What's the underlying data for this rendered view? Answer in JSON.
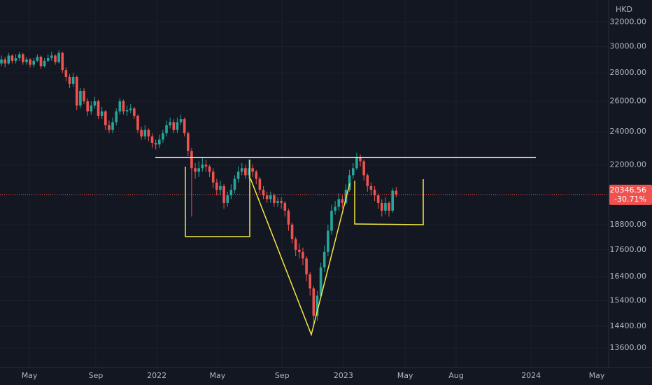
{
  "chart_data": {
    "type": "candlestick",
    "currency": "HKD",
    "price_label": "20346.56",
    "change_label": "-30.71%",
    "log_scale": true,
    "grid": true,
    "up_color": "#26a69a",
    "down_color": "#ef5350",
    "ylim": [
      12920,
      33900
    ],
    "yticks": [
      {
        "value": 32000,
        "label": "32000.00"
      },
      {
        "value": 30000,
        "label": "30000.00"
      },
      {
        "value": 28000,
        "label": "28000.00"
      },
      {
        "value": 26000,
        "label": "26000.00"
      },
      {
        "value": 24000,
        "label": "24000.00"
      },
      {
        "value": 22000,
        "label": "22000.00"
      },
      {
        "value": 18800,
        "label": "18800.00"
      },
      {
        "value": 17600,
        "label": "17600.00"
      },
      {
        "value": 16400,
        "label": "16400.00"
      },
      {
        "value": 15400,
        "label": "15400.00"
      },
      {
        "value": 14400,
        "label": "14400.00"
      },
      {
        "value": 13600,
        "label": "13600.00"
      }
    ],
    "xlim": [
      -0.4,
      169.2
    ],
    "xticks": [
      {
        "value": 7.8,
        "label": "May"
      },
      {
        "value": 26.3,
        "label": "Sep"
      },
      {
        "value": 43.3,
        "label": "2022"
      },
      {
        "value": 60.2,
        "label": "May"
      },
      {
        "value": 78.2,
        "label": "Sep"
      },
      {
        "value": 95.3,
        "label": "2023"
      },
      {
        "value": 112.5,
        "label": "May"
      },
      {
        "value": 126.7,
        "label": "Aug"
      },
      {
        "value": 147.6,
        "label": "2024"
      },
      {
        "value": 165.9,
        "label": "May"
      }
    ],
    "ohlc": [
      [
        28700,
        29300,
        28500,
        29000
      ],
      [
        29000,
        29200,
        28400,
        28700
      ],
      [
        28700,
        29500,
        28600,
        29300
      ],
      [
        29300,
        29400,
        28700,
        28900
      ],
      [
        28900,
        29400,
        28700,
        29100
      ],
      [
        29100,
        29600,
        28900,
        29400
      ],
      [
        29400,
        29500,
        28600,
        28800
      ],
      [
        28800,
        29200,
        28600,
        29000
      ],
      [
        29000,
        29100,
        28400,
        28600
      ],
      [
        28600,
        29100,
        28400,
        28900
      ],
      [
        28900,
        29400,
        28800,
        29200
      ],
      [
        29200,
        29300,
        28300,
        28500
      ],
      [
        28500,
        29100,
        28400,
        28900
      ],
      [
        28900,
        29400,
        28800,
        29100
      ],
      [
        29100,
        29600,
        28900,
        29300
      ],
      [
        29300,
        29400,
        28600,
        28800
      ],
      [
        28800,
        29700,
        28700,
        29500
      ],
      [
        29500,
        29600,
        28000,
        28200
      ],
      [
        28200,
        28400,
        27400,
        27700
      ],
      [
        27700,
        27900,
        26900,
        27200
      ],
      [
        27200,
        28000,
        27000,
        27700
      ],
      [
        27700,
        27800,
        25400,
        25700
      ],
      [
        25700,
        26900,
        25500,
        26700
      ],
      [
        26700,
        26900,
        25800,
        26000
      ],
      [
        26000,
        26200,
        25000,
        25300
      ],
      [
        25300,
        26000,
        25100,
        25700
      ],
      [
        25700,
        26300,
        25500,
        26000
      ],
      [
        26000,
        26100,
        24800,
        25000
      ],
      [
        25000,
        25600,
        24800,
        25300
      ],
      [
        25300,
        25400,
        24100,
        24400
      ],
      [
        24400,
        24700,
        23900,
        24100
      ],
      [
        24100,
        24900,
        23900,
        24600
      ],
      [
        24600,
        25500,
        24400,
        25300
      ],
      [
        25300,
        26200,
        25100,
        26000
      ],
      [
        26000,
        26100,
        25100,
        25300
      ],
      [
        25300,
        25700,
        25000,
        25400
      ],
      [
        25400,
        25800,
        25200,
        25500
      ],
      [
        25500,
        25600,
        24800,
        25000
      ],
      [
        25000,
        25100,
        23900,
        24100
      ],
      [
        24100,
        24300,
        23500,
        23700
      ],
      [
        23700,
        24400,
        23500,
        24100
      ],
      [
        24100,
        24200,
        23400,
        23700
      ],
      [
        23700,
        23900,
        23000,
        23300
      ],
      [
        23300,
        23500,
        22900,
        23200
      ],
      [
        23200,
        23800,
        23000,
        23500
      ],
      [
        23500,
        24100,
        23300,
        23900
      ],
      [
        23900,
        24700,
        23700,
        24400
      ],
      [
        24400,
        24900,
        24200,
        24600
      ],
      [
        24600,
        24800,
        23900,
        24100
      ],
      [
        24100,
        24900,
        23900,
        24600
      ],
      [
        24600,
        25100,
        24400,
        24800
      ],
      [
        24800,
        24900,
        23700,
        23900
      ],
      [
        23900,
        24000,
        22500,
        22800
      ],
      [
        22800,
        23000,
        19200,
        21800
      ],
      [
        21800,
        22100,
        21200,
        21600
      ],
      [
        21600,
        22200,
        21300,
        21800
      ],
      [
        21800,
        22400,
        21600,
        22000
      ],
      [
        22000,
        22300,
        21600,
        21900
      ],
      [
        21900,
        22000,
        21300,
        21600
      ],
      [
        21600,
        21800,
        20700,
        21000
      ],
      [
        21000,
        21200,
        20300,
        20600
      ],
      [
        20600,
        21100,
        20300,
        20800
      ],
      [
        20800,
        20900,
        19600,
        19900
      ],
      [
        19900,
        20500,
        19700,
        20300
      ],
      [
        20300,
        20900,
        20100,
        20600
      ],
      [
        20600,
        21400,
        20400,
        21200
      ],
      [
        21200,
        21900,
        21000,
        21600
      ],
      [
        21600,
        22100,
        21400,
        21800
      ],
      [
        21800,
        22000,
        21200,
        21400
      ],
      [
        21400,
        22300,
        21200,
        21800
      ],
      [
        21800,
        22000,
        21300,
        21600
      ],
      [
        21600,
        21700,
        20900,
        21200
      ],
      [
        21200,
        21300,
        20400,
        20600
      ],
      [
        20600,
        20800,
        20100,
        20300
      ],
      [
        20300,
        20500,
        19900,
        20100
      ],
      [
        20100,
        20500,
        19900,
        20300
      ],
      [
        20300,
        20400,
        19700,
        19900
      ],
      [
        19900,
        20200,
        19700,
        20000
      ],
      [
        20000,
        20200,
        19600,
        19900
      ],
      [
        19900,
        20000,
        19200,
        19500
      ],
      [
        19500,
        19600,
        18500,
        18800
      ],
      [
        18800,
        18900,
        17900,
        18100
      ],
      [
        18100,
        18200,
        17300,
        17600
      ],
      [
        17600,
        17900,
        17200,
        17500
      ],
      [
        17500,
        17700,
        16900,
        17200
      ],
      [
        17200,
        17300,
        16200,
        16500
      ],
      [
        16500,
        16600,
        15600,
        15900
      ],
      [
        15900,
        16000,
        14500,
        14800
      ],
      [
        14800,
        15800,
        14600,
        15600
      ],
      [
        15600,
        17000,
        15500,
        16800
      ],
      [
        16800,
        17800,
        16600,
        17500
      ],
      [
        17500,
        18800,
        17300,
        18500
      ],
      [
        18500,
        19800,
        18300,
        19500
      ],
      [
        19500,
        20000,
        19300,
        19700
      ],
      [
        19700,
        20400,
        19500,
        20100
      ],
      [
        20100,
        20300,
        19600,
        19900
      ],
      [
        19900,
        20900,
        19800,
        20600
      ],
      [
        20600,
        21700,
        20500,
        21400
      ],
      [
        21400,
        22100,
        21200,
        21800
      ],
      [
        21800,
        22700,
        21700,
        22400
      ],
      [
        22400,
        22600,
        21900,
        22200
      ],
      [
        22200,
        22300,
        21100,
        21400
      ],
      [
        21400,
        21500,
        20500,
        20800
      ],
      [
        20800,
        21000,
        20300,
        20600
      ],
      [
        20600,
        20800,
        20000,
        20300
      ],
      [
        20300,
        20400,
        19600,
        19900
      ],
      [
        19900,
        20100,
        19200,
        19500
      ],
      [
        19500,
        20200,
        19300,
        19900
      ],
      [
        19900,
        20000,
        19200,
        19500
      ],
      [
        19500,
        20700,
        19400,
        20550
      ],
      [
        20550,
        20750,
        20200,
        20346.56
      ]
    ]
  }
}
